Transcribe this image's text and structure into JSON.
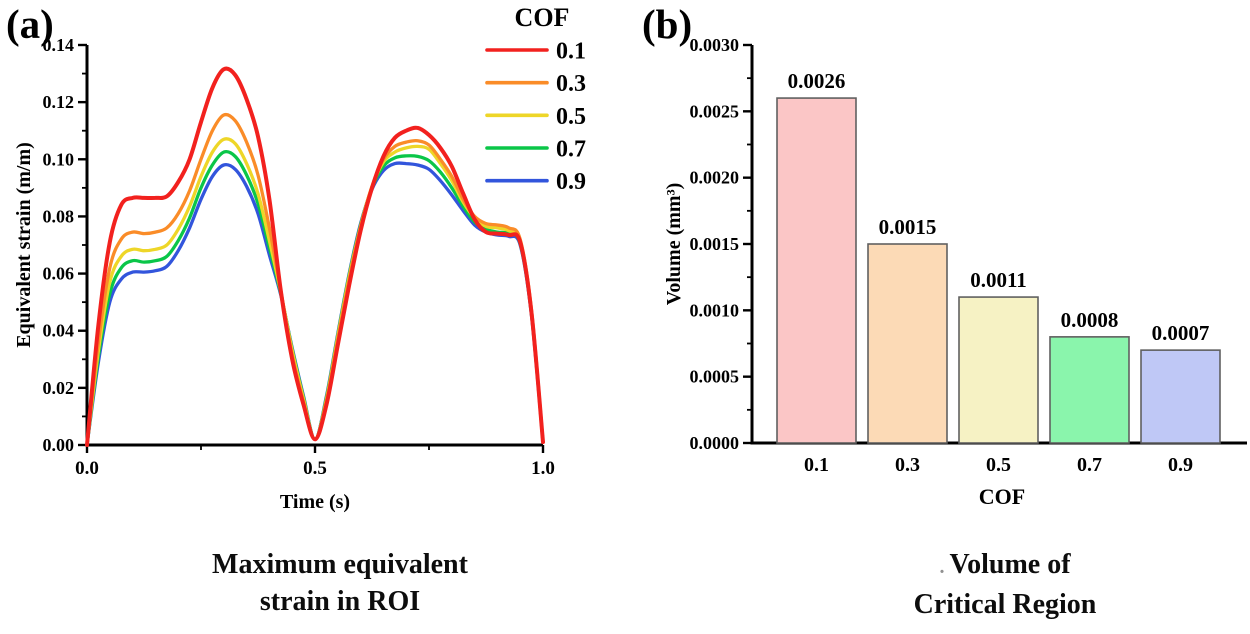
{
  "panels": {
    "a": {
      "label": "(a)",
      "caption_line1": "Maximum equivalent",
      "caption_line2": "strain in ROI"
    },
    "b": {
      "label": "(b)",
      "caption_prefix": ".",
      "caption_line1": "Volume of",
      "caption_line2": "Critical Region"
    }
  },
  "chart_data": [
    {
      "type": "line",
      "title": "Maximum equivalent strain in ROI",
      "xlabel": "Time (s)",
      "ylabel": "Equivalent strain (m/m)",
      "xlim": [
        0,
        1
      ],
      "ylim": [
        0,
        0.14
      ],
      "x_major_ticks": [
        0,
        0.5,
        1
      ],
      "x_minor_ticks": [
        0.25,
        0.75
      ],
      "y_major_step": 0.02,
      "y_minor_step": 0.01,
      "grid": false,
      "legend_position": "top-right",
      "legend_title": "COF",
      "x": [
        0,
        0.025,
        0.05,
        0.075,
        0.1,
        0.125,
        0.15,
        0.175,
        0.2,
        0.225,
        0.25,
        0.275,
        0.3,
        0.325,
        0.35,
        0.375,
        0.4,
        0.425,
        0.45,
        0.475,
        0.5,
        0.525,
        0.55,
        0.575,
        0.6,
        0.625,
        0.65,
        0.675,
        0.7,
        0.725,
        0.75,
        0.775,
        0.8,
        0.825,
        0.85,
        0.875,
        0.9,
        0.925,
        0.95,
        0.975,
        1.0
      ],
      "series": [
        {
          "name": "0.1",
          "color": "#f2211e",
          "width": 4,
          "values": [
            0.0,
            0.042,
            0.071,
            0.084,
            0.0865,
            0.0865,
            0.0865,
            0.087,
            0.092,
            0.1,
            0.113,
            0.125,
            0.1315,
            0.1295,
            0.121,
            0.108,
            0.086,
            0.054,
            0.03,
            0.014,
            0.002,
            0.014,
            0.035,
            0.056,
            0.075,
            0.09,
            0.101,
            0.1075,
            0.11,
            0.111,
            0.1085,
            0.104,
            0.0975,
            0.088,
            0.079,
            0.0745,
            0.074,
            0.0735,
            0.071,
            0.046,
            0.001
          ]
        },
        {
          "name": "0.3",
          "color": "#fa8c28",
          "width": 3.3,
          "values": [
            0.0,
            0.036,
            0.062,
            0.072,
            0.0745,
            0.074,
            0.0745,
            0.076,
            0.081,
            0.089,
            0.1,
            0.11,
            0.1155,
            0.1135,
            0.106,
            0.0945,
            0.076,
            0.054,
            0.0315,
            0.015,
            0.002,
            0.0155,
            0.037,
            0.058,
            0.0765,
            0.0905,
            0.1,
            0.1045,
            0.106,
            0.1065,
            0.105,
            0.1,
            0.094,
            0.086,
            0.08,
            0.0775,
            0.077,
            0.076,
            0.072,
            0.047,
            0.001
          ]
        },
        {
          "name": "0.5",
          "color": "#eed628",
          "width": 3.3,
          "values": [
            0.0,
            0.033,
            0.057,
            0.066,
            0.0685,
            0.068,
            0.0685,
            0.07,
            0.0755,
            0.0835,
            0.094,
            0.1025,
            0.107,
            0.1055,
            0.0985,
            0.088,
            0.0715,
            0.0535,
            0.033,
            0.016,
            0.002,
            0.016,
            0.038,
            0.059,
            0.0765,
            0.0905,
            0.099,
            0.1025,
            0.104,
            0.1045,
            0.1035,
            0.0985,
            0.0925,
            0.085,
            0.0795,
            0.0765,
            0.076,
            0.075,
            0.0715,
            0.046,
            0.001
          ]
        },
        {
          "name": "0.7",
          "color": "#0ac648",
          "width": 3.3,
          "values": [
            0.0,
            0.031,
            0.053,
            0.062,
            0.0645,
            0.064,
            0.0645,
            0.066,
            0.0715,
            0.0795,
            0.09,
            0.098,
            0.1025,
            0.101,
            0.0945,
            0.0845,
            0.069,
            0.053,
            0.0335,
            0.0165,
            0.002,
            0.0165,
            0.0385,
            0.0595,
            0.077,
            0.09,
            0.0975,
            0.1005,
            0.1012,
            0.101,
            0.0995,
            0.0955,
            0.09,
            0.0835,
            0.078,
            0.0755,
            0.0745,
            0.074,
            0.0705,
            0.0455,
            0.001
          ]
        },
        {
          "name": "0.9",
          "color": "#3255dc",
          "width": 3.3,
          "values": [
            0.0,
            0.029,
            0.05,
            0.058,
            0.0605,
            0.0605,
            0.061,
            0.0625,
            0.068,
            0.076,
            0.086,
            0.094,
            0.098,
            0.0965,
            0.0905,
            0.081,
            0.0665,
            0.0525,
            0.034,
            0.017,
            0.002,
            0.017,
            0.039,
            0.06,
            0.0775,
            0.0895,
            0.096,
            0.0985,
            0.0985,
            0.098,
            0.0965,
            0.0925,
            0.0875,
            0.082,
            0.077,
            0.0745,
            0.0735,
            0.073,
            0.07,
            0.045,
            0.001
          ]
        }
      ]
    },
    {
      "type": "bar",
      "title": "Volume of Critical Region",
      "xlabel": "COF",
      "ylabel": "Volume (mm³)",
      "categories": [
        "0.1",
        "0.3",
        "0.5",
        "0.7",
        "0.9"
      ],
      "values": [
        0.0026,
        0.0015,
        0.0011,
        0.0008,
        0.0007
      ],
      "bar_labels": [
        "0.0026",
        "0.0015",
        "0.0011",
        "0.0008",
        "0.0007"
      ],
      "bar_fills": [
        "#fbc6c6",
        "#fcdab6",
        "#f6f2c4",
        "#8af5ac",
        "#bfc8f6"
      ],
      "bar_stroke": "#606060",
      "ylim": [
        0,
        0.003
      ],
      "y_major_step": 0.0005,
      "y_minor_step": 0.00025,
      "grid": false
    }
  ],
  "colors": {
    "axis": "#000000",
    "text": "#000000",
    "background": "#ffffff"
  }
}
